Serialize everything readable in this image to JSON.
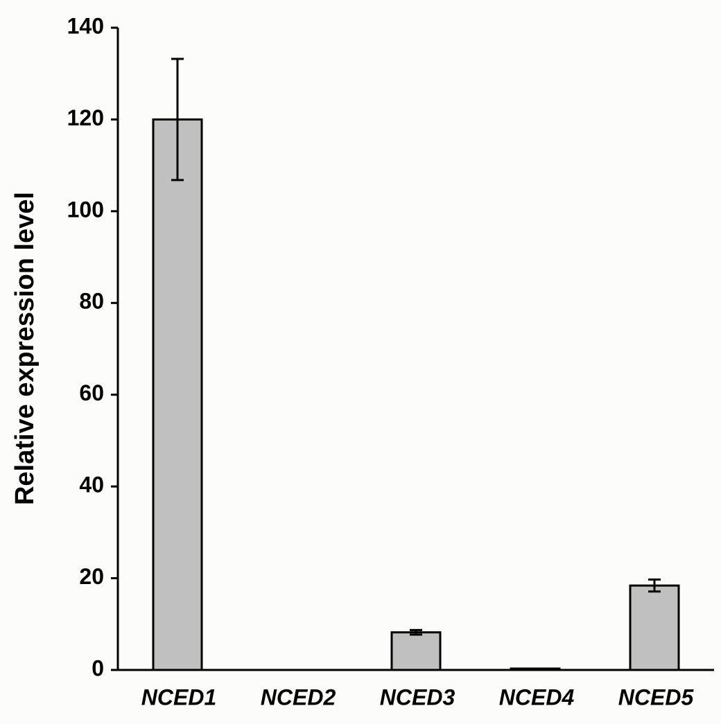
{
  "chart_data": {
    "type": "bar",
    "y_label": "Relative expression level",
    "categories": [
      "NCED1",
      "NCED2",
      "NCED3",
      "NCED4",
      "NCED5"
    ],
    "values": [
      120,
      0,
      8.2,
      0.3,
      18.4
    ],
    "errors": [
      13.2,
      0,
      0.5,
      0,
      1.3
    ],
    "color": "#c0c0c0",
    "ylim": [
      0,
      140
    ],
    "yticks": [
      0,
      20,
      40,
      60,
      80,
      100,
      120,
      140
    ],
    "grid": false
  }
}
